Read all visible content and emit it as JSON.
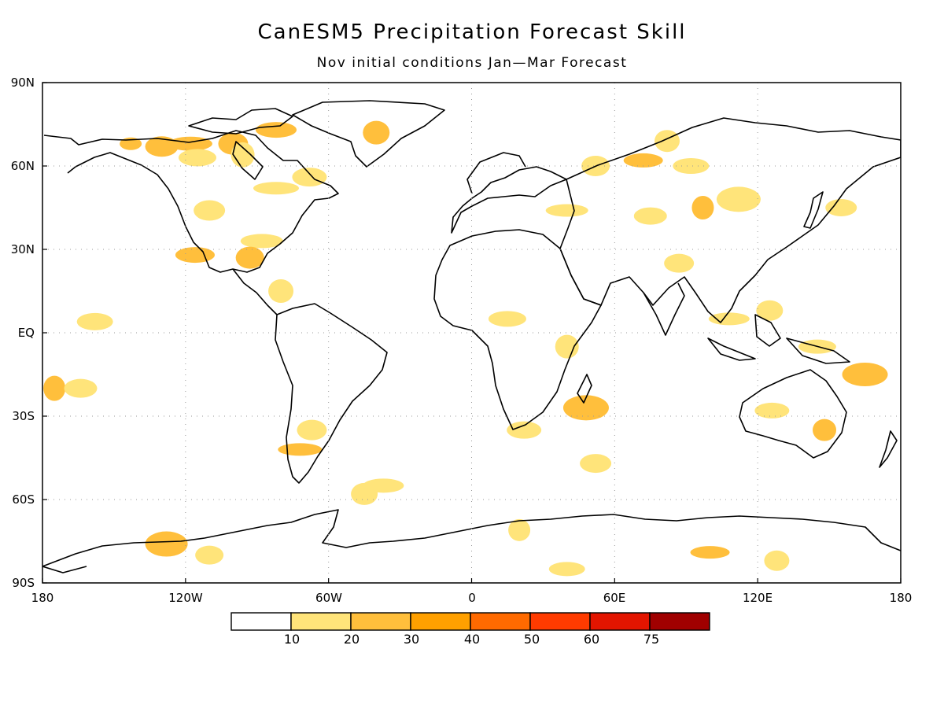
{
  "header": {
    "title": "CanESM5 Precipitation Forecast Skill",
    "subtitle": "Nov initial conditions  Jan—Mar Forecast"
  },
  "axes": {
    "lat_ticks": [
      "90N",
      "60N",
      "30N",
      "EQ",
      "30S",
      "60S",
      "90S"
    ],
    "lon_ticks": [
      "180",
      "120W",
      "60W",
      "0",
      "60E",
      "120E",
      "180"
    ]
  },
  "colorbar": {
    "labels": [
      "10",
      "20",
      "30",
      "40",
      "50",
      "60",
      "75"
    ],
    "colors": [
      "#ffffff",
      "#ffe47a",
      "#ffbf3c",
      "#ffa000",
      "#ff6a00",
      "#ff3b00",
      "#e31500",
      "#a00000"
    ]
  },
  "map": {
    "projection": "plate-carree",
    "lon_range": [
      -180,
      180
    ],
    "lat_range": [
      -90,
      90
    ],
    "gridlines": "dotted",
    "skill_regions": [
      {
        "lon": -143,
        "lat": 68,
        "level": 1
      },
      {
        "lon": -130,
        "lat": 67,
        "level": 1
      },
      {
        "lon": -118,
        "lat": 68,
        "level": 1
      },
      {
        "lon": -100,
        "lat": 68,
        "level": 1
      },
      {
        "lon": -82,
        "lat": 73,
        "level": 1
      },
      {
        "lon": -40,
        "lat": 72,
        "level": 1
      },
      {
        "lon": -115,
        "lat": 63,
        "level": 0
      },
      {
        "lon": -96,
        "lat": 64,
        "level": 0
      },
      {
        "lon": -68,
        "lat": 56,
        "level": 0
      },
      {
        "lon": -82,
        "lat": 52,
        "level": 0
      },
      {
        "lon": -110,
        "lat": 44,
        "level": 0
      },
      {
        "lon": -88,
        "lat": 33,
        "level": 0
      },
      {
        "lon": -93,
        "lat": 27,
        "level": 1
      },
      {
        "lon": -116,
        "lat": 28,
        "level": 1
      },
      {
        "lon": -80,
        "lat": 15,
        "level": 0
      },
      {
        "lon": -158,
        "lat": 4,
        "level": 0
      },
      {
        "lon": -175,
        "lat": -20,
        "level": 1
      },
      {
        "lon": -164,
        "lat": -20,
        "level": 0
      },
      {
        "lon": -72,
        "lat": -42,
        "level": 1
      },
      {
        "lon": -67,
        "lat": -35,
        "level": 0
      },
      {
        "lon": -37,
        "lat": -55,
        "level": 0
      },
      {
        "lon": -45,
        "lat": -58,
        "level": 0
      },
      {
        "lon": 15,
        "lat": 5,
        "level": 0
      },
      {
        "lon": 40,
        "lat": -5,
        "level": 0
      },
      {
        "lon": 22,
        "lat": -35,
        "level": 0
      },
      {
        "lon": 48,
        "lat": -27,
        "level": 1
      },
      {
        "lon": 52,
        "lat": -47,
        "level": 0
      },
      {
        "lon": 40,
        "lat": 44,
        "level": 0
      },
      {
        "lon": 52,
        "lat": 60,
        "level": 0
      },
      {
        "lon": 72,
        "lat": 62,
        "level": 1
      },
      {
        "lon": 82,
        "lat": 69,
        "level": 0
      },
      {
        "lon": 92,
        "lat": 60,
        "level": 0
      },
      {
        "lon": 97,
        "lat": 45,
        "level": 1
      },
      {
        "lon": 75,
        "lat": 42,
        "level": 0
      },
      {
        "lon": 112,
        "lat": 48,
        "level": 0
      },
      {
        "lon": 87,
        "lat": 25,
        "level": 0
      },
      {
        "lon": 108,
        "lat": 5,
        "level": 0
      },
      {
        "lon": 125,
        "lat": 8,
        "level": 0
      },
      {
        "lon": 145,
        "lat": -5,
        "level": 0
      },
      {
        "lon": 148,
        "lat": -35,
        "level": 1
      },
      {
        "lon": 126,
        "lat": -28,
        "level": 0
      },
      {
        "lon": 165,
        "lat": -15,
        "level": 1
      },
      {
        "lon": 155,
        "lat": 45,
        "level": 0
      },
      {
        "lon": -128,
        "lat": -76,
        "level": 1
      },
      {
        "lon": -110,
        "lat": -80,
        "level": 0
      },
      {
        "lon": 100,
        "lat": -79,
        "level": 1
      },
      {
        "lon": 128,
        "lat": -82,
        "level": 0
      },
      {
        "lon": 40,
        "lat": -85,
        "level": 0
      },
      {
        "lon": 20,
        "lat": -71,
        "level": 0
      }
    ]
  }
}
